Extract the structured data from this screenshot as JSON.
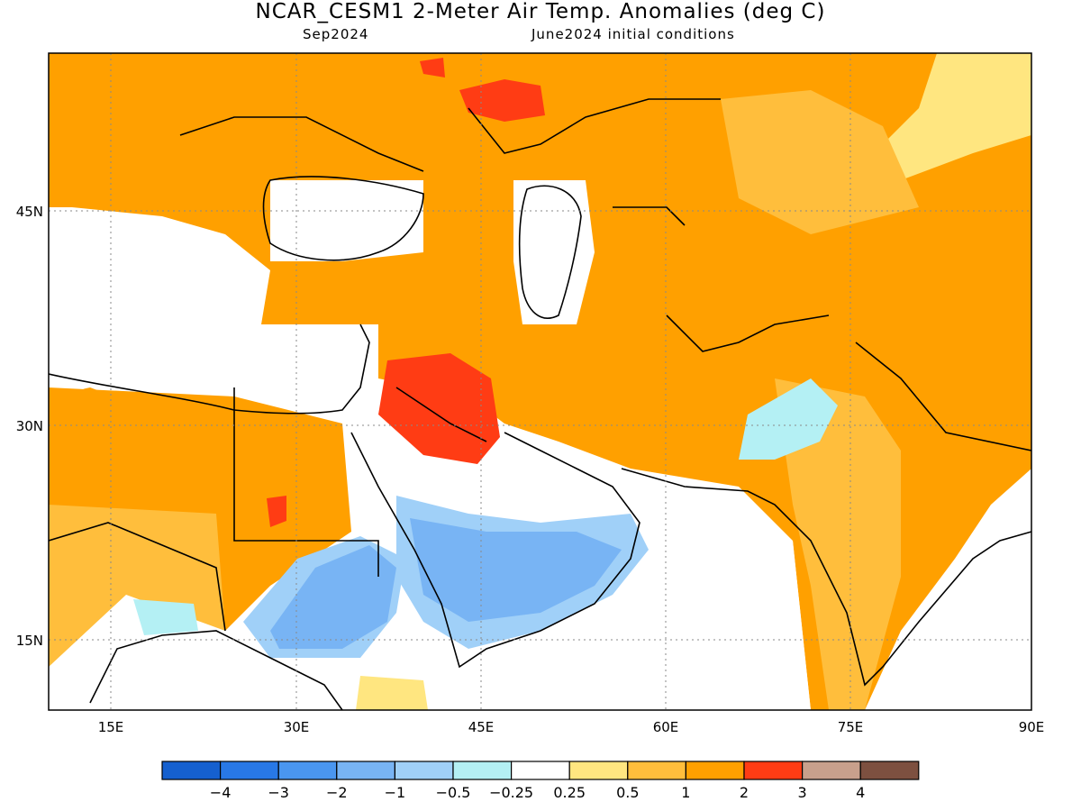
{
  "header": {
    "title": "NCAR_CESM1 2-Meter Air Temp. Anomalies (deg C)",
    "valid_month": "Sep2024",
    "initial_conditions": "June2024 initial conditions"
  },
  "map": {
    "lon_range": [
      10,
      90
    ],
    "lat_range": [
      10,
      56
    ],
    "lon_ticks": [
      {
        "value": 15,
        "label": "15E"
      },
      {
        "value": 30,
        "label": "30E"
      },
      {
        "value": 45,
        "label": "45E"
      },
      {
        "value": 60,
        "label": "60E"
      },
      {
        "value": 75,
        "label": "75E"
      },
      {
        "value": 90,
        "label": "90E"
      }
    ],
    "lat_ticks": [
      {
        "value": 45,
        "label": "45N"
      },
      {
        "value": 30,
        "label": "30N"
      },
      {
        "value": 15,
        "label": "15N"
      }
    ],
    "gridlines": "dotted"
  },
  "colorbar": {
    "colors": [
      "#1560cf",
      "#2878e6",
      "#4a96f0",
      "#78b4f4",
      "#a0d0f8",
      "#b4f0f4",
      "#ffffff",
      "#ffe680",
      "#ffbe3c",
      "#ffa000",
      "#ff3c14",
      "#c8a08c",
      "#7d5040"
    ],
    "labels": [
      "−4",
      "−3",
      "−2",
      "−1",
      "−0.5",
      "−0.25",
      "0.25",
      "0.5",
      "1",
      "2",
      "3",
      "4"
    ]
  }
}
